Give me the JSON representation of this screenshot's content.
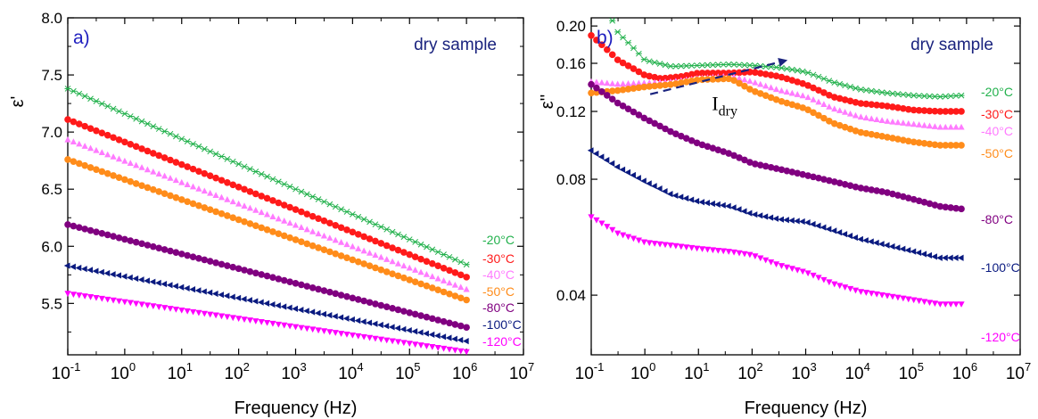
{
  "figure_colors": {
    "-20": "#22b14c",
    "-30": "#ff1a1a",
    "-40": "#ff7bff",
    "-50": "#ff8c1a",
    "-80": "#800080",
    "-100": "#0a1a80",
    "-120": "#ff00ff",
    "panel_label": "#1f1fbf",
    "annotation": "#1a237e",
    "axis": "#000000"
  },
  "chart_data": [
    {
      "type": "scatter",
      "panel_label": "a)",
      "annotation": "dry sample",
      "xlabel": "Frequency (Hz)",
      "ylabel": "ε'",
      "xscale": "log",
      "xlim": [
        0.1,
        10000000
      ],
      "ylim": [
        5.05,
        8.0
      ],
      "yticks": [
        5.5,
        6.0,
        6.5,
        7.0,
        7.5,
        8.0
      ],
      "ytick_labels": [
        "5.5",
        "6.0",
        "6.5",
        "7.0",
        "7.5",
        "8.0"
      ],
      "xtick_labels": [
        {
          "base": "10",
          "exp": "-1"
        },
        {
          "base": "10",
          "exp": "0"
        },
        {
          "base": "10",
          "exp": "1"
        },
        {
          "base": "10",
          "exp": "2"
        },
        {
          "base": "10",
          "exp": "3"
        },
        {
          "base": "10",
          "exp": "4"
        },
        {
          "base": "10",
          "exp": "5"
        },
        {
          "base": "10",
          "exp": "6"
        },
        {
          "base": "10",
          "exp": "7"
        }
      ],
      "series": [
        {
          "name": "-20°C",
          "key": "-20",
          "marker": "x-star",
          "x_range": [
            0.1,
            1000000
          ],
          "anchors": [
            [
              -1,
              7.38
            ],
            [
              6,
              5.84
            ]
          ]
        },
        {
          "name": "-30°C",
          "key": "-30",
          "marker": "circle",
          "x_range": [
            0.1,
            1000000
          ],
          "anchors": [
            [
              -1,
              7.11
            ],
            [
              6,
              5.73
            ]
          ]
        },
        {
          "name": "-40°C",
          "key": "-40",
          "marker": "triangle-up",
          "x_range": [
            0.1,
            1000000
          ],
          "anchors": [
            [
              -1,
              6.93
            ],
            [
              6,
              5.62
            ]
          ]
        },
        {
          "name": "-50°C",
          "key": "-50",
          "marker": "circle",
          "x_range": [
            0.1,
            1000000
          ],
          "anchors": [
            [
              -1,
              6.76
            ],
            [
              6,
              5.53
            ]
          ]
        },
        {
          "name": "-80°C",
          "key": "-80",
          "marker": "circle",
          "x_range": [
            0.1,
            1000000
          ],
          "anchors": [
            [
              -1,
              6.19
            ],
            [
              6,
              5.29
            ]
          ]
        },
        {
          "name": "-100°C",
          "key": "-100",
          "marker": "triangle-left",
          "x_range": [
            0.1,
            1000000
          ],
          "anchors": [
            [
              -1,
              5.83
            ],
            [
              6,
              5.17
            ]
          ]
        },
        {
          "name": "-120°C",
          "key": "-120",
          "marker": "triangle-down",
          "x_range": [
            0.1,
            1000000
          ],
          "anchors": [
            [
              -1,
              5.59
            ],
            [
              6,
              5.08
            ]
          ]
        }
      ]
    },
    {
      "type": "scatter",
      "panel_label": "b)",
      "annotation": "dry sample",
      "arrow_label": {
        "main": "I",
        "sub": "dry"
      },
      "xlabel": "Frequency (Hz)",
      "ylabel": "ε''",
      "xscale": "log",
      "yscale": "log",
      "xlim": [
        0.1,
        10000000
      ],
      "ylim": [
        0.028,
        0.21
      ],
      "yticks": [
        0.04,
        0.08,
        0.12,
        0.16,
        0.2
      ],
      "ytick_labels": [
        "0.04",
        "0.08",
        "0.12",
        "0.16",
        "0.20"
      ],
      "xtick_labels": [
        {
          "base": "10",
          "exp": "-1"
        },
        {
          "base": "10",
          "exp": "0"
        },
        {
          "base": "10",
          "exp": "1"
        },
        {
          "base": "10",
          "exp": "2"
        },
        {
          "base": "10",
          "exp": "3"
        },
        {
          "base": "10",
          "exp": "4"
        },
        {
          "base": "10",
          "exp": "5"
        },
        {
          "base": "10",
          "exp": "6"
        },
        {
          "base": "10",
          "exp": "7"
        }
      ],
      "series": [
        {
          "name": "-20°C",
          "key": "-20",
          "marker": "x-star",
          "x_range": [
            0.1,
            800000
          ],
          "anchors": [
            [
              -1,
              0.26
            ],
            [
              -0.5,
              0.192
            ],
            [
              0,
              0.163
            ],
            [
              0.5,
              0.157
            ],
            [
              1,
              0.158
            ],
            [
              1.6,
              0.159
            ],
            [
              2,
              0.158
            ],
            [
              2.5,
              0.156
            ],
            [
              3,
              0.152
            ],
            [
              3.5,
              0.143
            ],
            [
              4,
              0.137
            ],
            [
              4.5,
              0.134
            ],
            [
              5,
              0.132
            ],
            [
              5.5,
              0.131
            ],
            [
              5.9,
              0.132
            ]
          ]
        },
        {
          "name": "-30°C",
          "key": "-30",
          "marker": "circle",
          "x_range": [
            0.1,
            800000
          ],
          "anchors": [
            [
              -1,
              0.189
            ],
            [
              -0.5,
              0.163
            ],
            [
              0,
              0.149
            ],
            [
              0.3,
              0.146
            ],
            [
              0.7,
              0.148
            ],
            [
              1,
              0.151
            ],
            [
              1.6,
              0.151
            ],
            [
              2,
              0.152
            ],
            [
              2.5,
              0.148
            ],
            [
              3,
              0.141
            ],
            [
              3.5,
              0.131
            ],
            [
              4,
              0.126
            ],
            [
              4.5,
              0.124
            ],
            [
              5,
              0.121
            ],
            [
              5.5,
              0.12
            ],
            [
              5.9,
              0.12
            ]
          ]
        },
        {
          "name": "-40°C",
          "key": "-40",
          "marker": "triangle-up",
          "x_range": [
            0.1,
            800000
          ],
          "anchors": [
            [
              -1,
              0.143
            ],
            [
              -0.5,
              0.141
            ],
            [
              0,
              0.142
            ],
            [
              0.5,
              0.143
            ],
            [
              1,
              0.146
            ],
            [
              1.6,
              0.148
            ],
            [
              2,
              0.143
            ],
            [
              2.5,
              0.136
            ],
            [
              3,
              0.131
            ],
            [
              3.5,
              0.122
            ],
            [
              4,
              0.116
            ],
            [
              4.5,
              0.113
            ],
            [
              5,
              0.111
            ],
            [
              5.5,
              0.109
            ],
            [
              5.9,
              0.109
            ]
          ]
        },
        {
          "name": "-50°C",
          "key": "-50",
          "marker": "circle",
          "x_range": [
            0.1,
            800000
          ],
          "anchors": [
            [
              -1,
              0.134
            ],
            [
              -0.5,
              0.136
            ],
            [
              0,
              0.139
            ],
            [
              0.5,
              0.141
            ],
            [
              1,
              0.145
            ],
            [
              1.6,
              0.146
            ],
            [
              2,
              0.136
            ],
            [
              2.5,
              0.128
            ],
            [
              3,
              0.122
            ],
            [
              3.5,
              0.112
            ],
            [
              4,
              0.106
            ],
            [
              4.5,
              0.103
            ],
            [
              5,
              0.1
            ],
            [
              5.5,
              0.098
            ],
            [
              5.9,
              0.098
            ]
          ]
        },
        {
          "name": "-80°C",
          "key": "-80",
          "marker": "circle",
          "x_range": [
            0.1,
            800000
          ],
          "anchors": [
            [
              -1,
              0.141
            ],
            [
              -0.5,
              0.126
            ],
            [
              0,
              0.115
            ],
            [
              0.5,
              0.106
            ],
            [
              1,
              0.099
            ],
            [
              1.6,
              0.093
            ],
            [
              2,
              0.088
            ],
            [
              2.5,
              0.085
            ],
            [
              3,
              0.082
            ],
            [
              3.5,
              0.079
            ],
            [
              4,
              0.076
            ],
            [
              4.5,
              0.074
            ],
            [
              5,
              0.071
            ],
            [
              5.5,
              0.068
            ],
            [
              5.9,
              0.067
            ]
          ]
        },
        {
          "name": "-100°C",
          "key": "-100",
          "marker": "triangle-left",
          "x_range": [
            0.1,
            800000
          ],
          "anchors": [
            [
              -1,
              0.095
            ],
            [
              -0.5,
              0.086
            ],
            [
              0,
              0.079
            ],
            [
              0.5,
              0.073
            ],
            [
              1,
              0.07
            ],
            [
              1.6,
              0.068
            ],
            [
              2,
              0.065
            ],
            [
              2.5,
              0.063
            ],
            [
              3,
              0.062
            ],
            [
              3.5,
              0.059
            ],
            [
              4,
              0.056
            ],
            [
              4.5,
              0.054
            ],
            [
              5,
              0.052
            ],
            [
              5.5,
              0.05
            ],
            [
              5.9,
              0.05
            ]
          ]
        },
        {
          "name": "-120°C",
          "key": "-120",
          "marker": "triangle-down",
          "x_range": [
            0.1,
            800000
          ],
          "anchors": [
            [
              -1,
              0.064
            ],
            [
              -0.5,
              0.058
            ],
            [
              0,
              0.055
            ],
            [
              0.5,
              0.054
            ],
            [
              1,
              0.053
            ],
            [
              1.6,
              0.052
            ],
            [
              2,
              0.051
            ],
            [
              2.5,
              0.048
            ],
            [
              3,
              0.046
            ],
            [
              3.5,
              0.043
            ],
            [
              4,
              0.041
            ],
            [
              4.5,
              0.04
            ],
            [
              5,
              0.039
            ],
            [
              5.5,
              0.038
            ],
            [
              5.9,
              0.038
            ]
          ]
        }
      ]
    }
  ]
}
